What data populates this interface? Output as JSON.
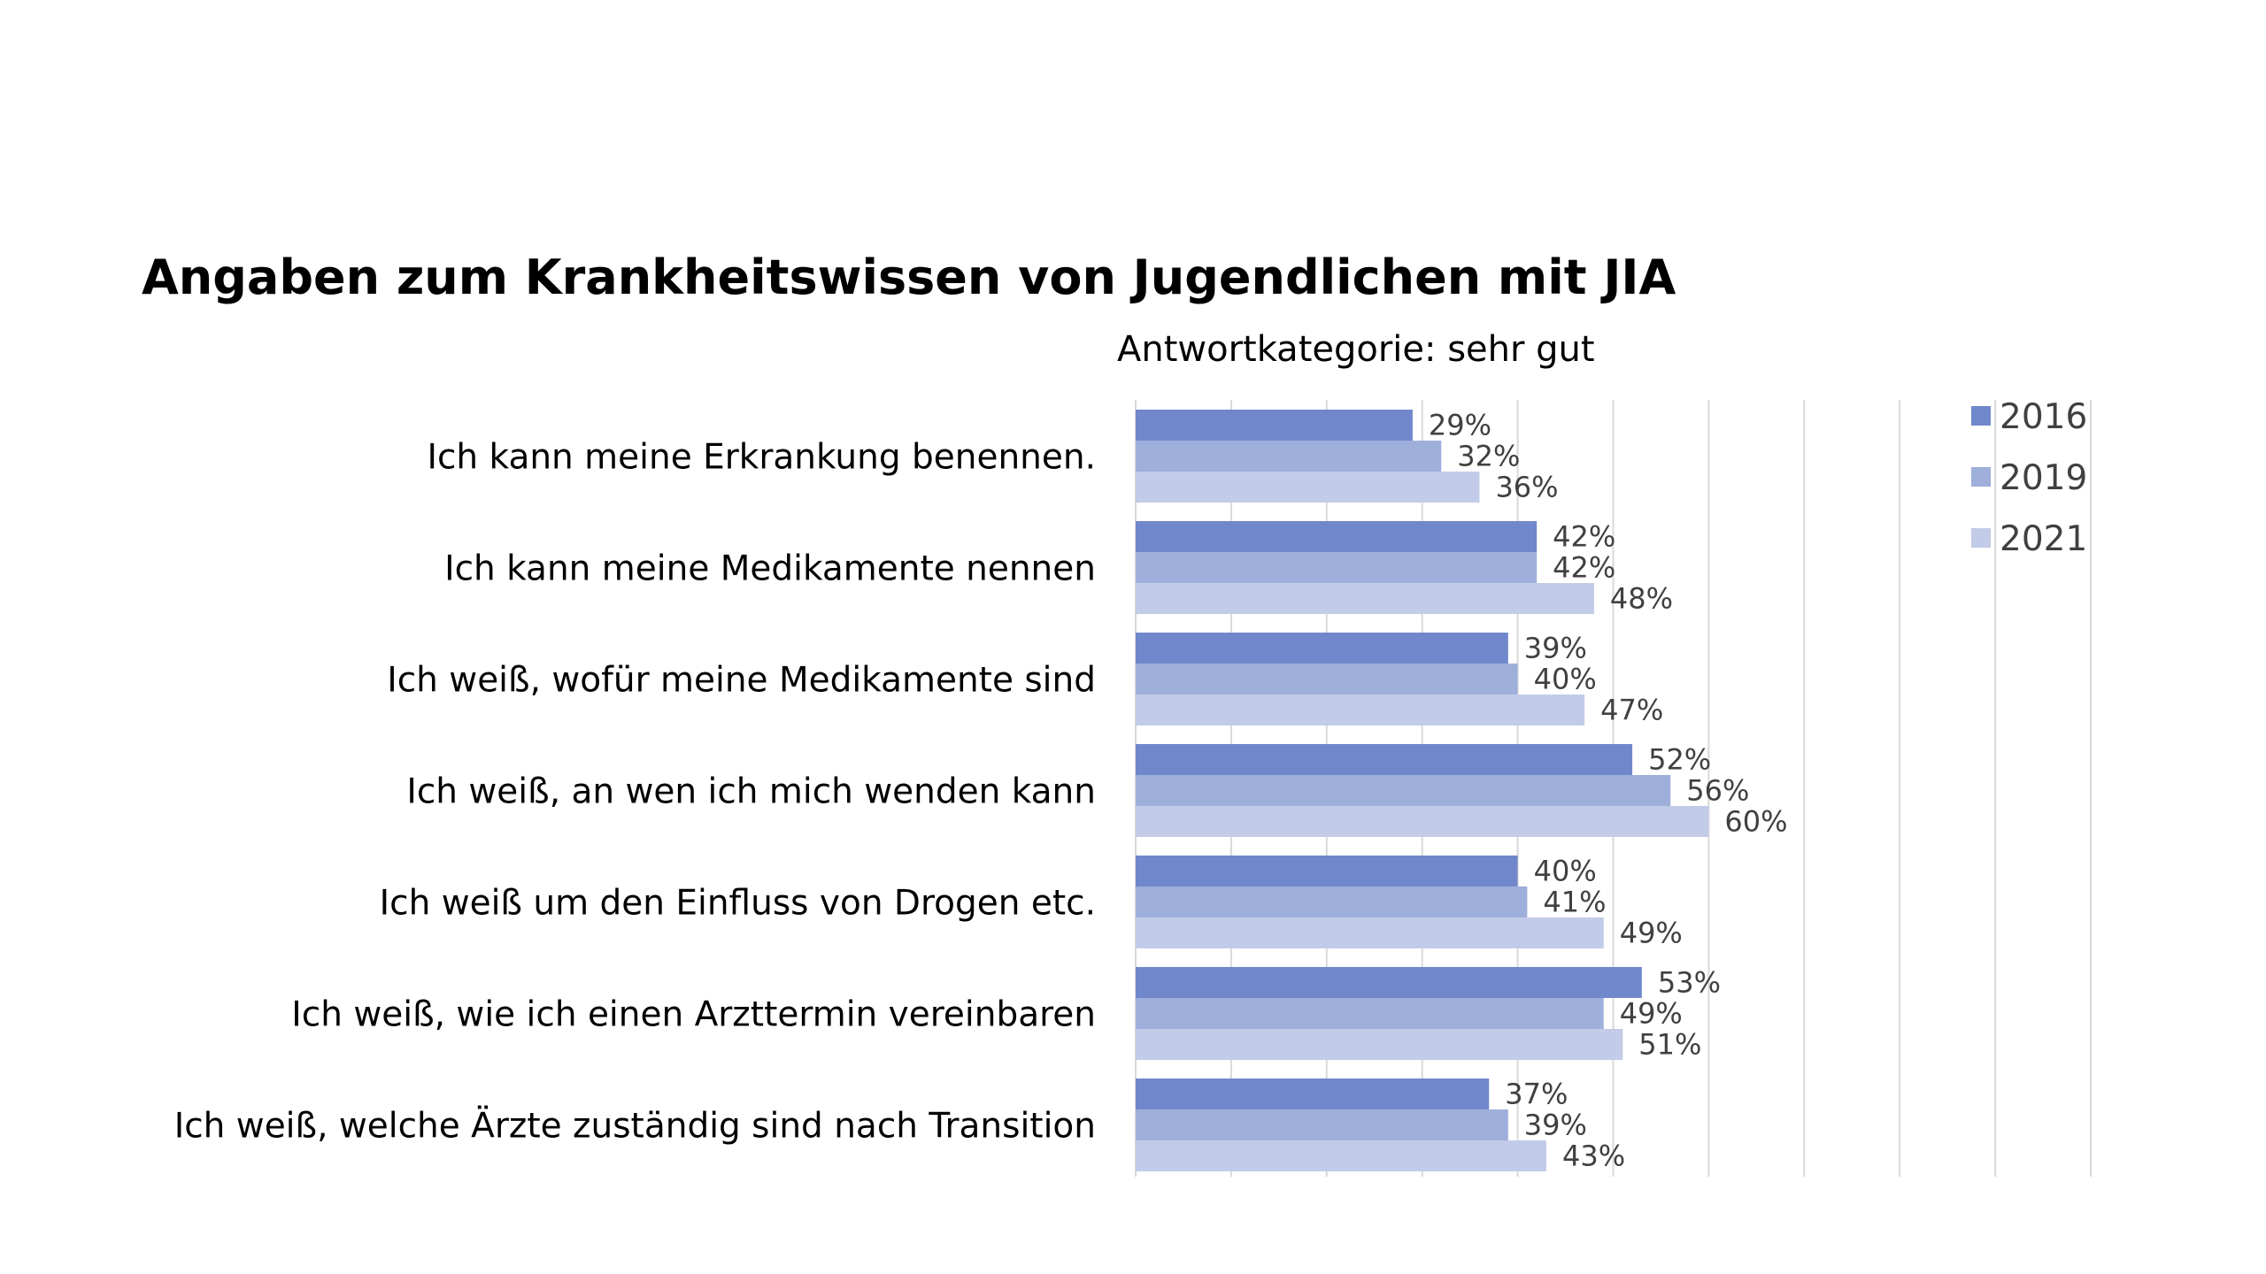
{
  "title": "Angaben zum Krankheitswissen von Jugendlichen mit JIA",
  "subtitle": "Antwortkategorie: sehr gut",
  "colors": {
    "series_2016": "#7088cb",
    "series_2019": "#9fafdb",
    "series_2021": "#c2cbe8",
    "gridline": "#d9d9d9",
    "label_text": "#404040"
  },
  "chart_data": {
    "type": "bar",
    "orientation": "horizontal",
    "categories": [
      "Ich kann meine Erkrankung benennen.",
      "Ich kann meine Medikamente nennen",
      "Ich weiß, wofür meine Medikamente sind",
      "Ich weiß, an wen ich mich wenden kann",
      "Ich weiß um den Einfluss von Drogen etc.",
      "Ich weiß, wie ich einen Arzttermin vereinbaren",
      "Ich weiß, welche Ärzte zuständig sind nach Transition"
    ],
    "series": [
      {
        "name": "2016",
        "values": [
          29,
          42,
          39,
          52,
          40,
          53,
          37
        ],
        "labels": [
          "29%",
          "42%",
          "39%",
          "52%",
          "40%",
          "53%",
          "37%"
        ]
      },
      {
        "name": "2019",
        "values": [
          32,
          42,
          40,
          56,
          41,
          49,
          39
        ],
        "labels": [
          "32%",
          "42%",
          "40%",
          "56%",
          "41%",
          "49%",
          "39%"
        ]
      },
      {
        "name": "2021",
        "values": [
          36,
          48,
          47,
          60,
          49,
          51,
          43
        ],
        "labels": [
          "36%",
          "48%",
          "47%",
          "60%",
          "49%",
          "51%",
          "43%"
        ]
      }
    ],
    "xlim": [
      0,
      100
    ],
    "x_grid_step": 10,
    "grid": true,
    "tick_labels_visible": false,
    "legend_position": "top-right",
    "value_unit": "%"
  }
}
